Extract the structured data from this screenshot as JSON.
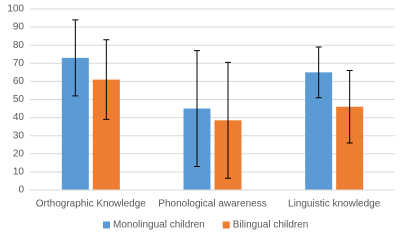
{
  "chart_data": {
    "type": "bar",
    "categories": [
      "Orthographic Knowledge",
      "Phonological awareness",
      "Linguistic knowledge"
    ],
    "series": [
      {
        "name": "Monolingual children",
        "color": "#5b9bd5",
        "values": [
          73,
          45,
          65
        ],
        "errors": [
          21,
          32,
          14
        ]
      },
      {
        "name": "Bilingual children",
        "color": "#ed7d31",
        "values": [
          61,
          38.5,
          46
        ],
        "errors": [
          22,
          32,
          20
        ]
      }
    ],
    "ylim": [
      0,
      100
    ],
    "yticks": [
      0,
      10,
      20,
      30,
      40,
      50,
      60,
      70,
      80,
      90,
      100
    ],
    "grid": true,
    "legend": "bottom"
  }
}
